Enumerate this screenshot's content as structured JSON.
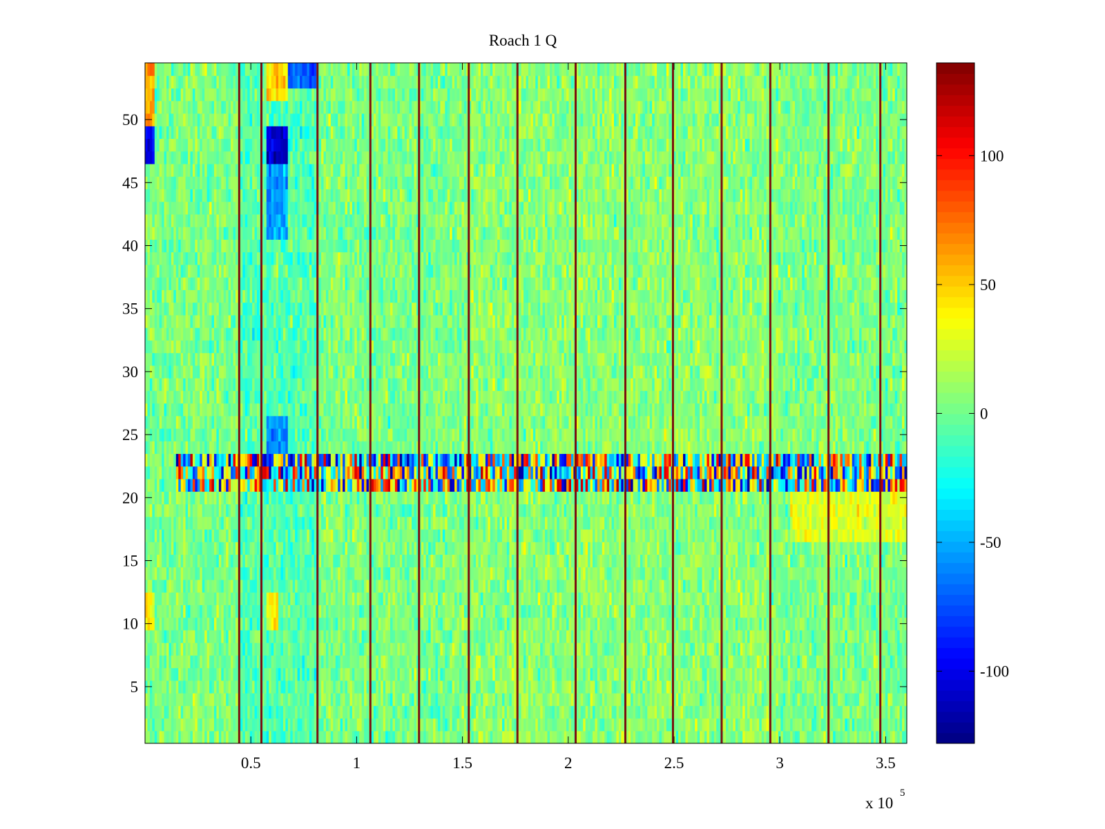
{
  "chart_data": {
    "type": "heatmap",
    "title": "Roach 1 Q",
    "xlabel": "",
    "ylabel": "",
    "x_range": [
      0,
      360000
    ],
    "y_range": [
      0.5,
      54.5
    ],
    "x_ticks": [
      50000,
      100000,
      150000,
      200000,
      250000,
      300000,
      350000
    ],
    "x_tick_labels": [
      "0.5",
      "1",
      "1.5",
      "2",
      "2.5",
      "3",
      "3.5"
    ],
    "x_exponent_label": {
      "base": "x 10",
      "power": "5"
    },
    "y_ticks": [
      5,
      10,
      15,
      20,
      25,
      30,
      35,
      40,
      45,
      50
    ],
    "y_tick_labels": [
      "5",
      "10",
      "15",
      "20",
      "25",
      "30",
      "35",
      "40",
      "45",
      "50"
    ],
    "rows": 54,
    "colormap": "jet",
    "color_limits": [
      -128,
      136
    ],
    "colorbar": {
      "ticks": [
        -100,
        -50,
        0,
        50,
        100
      ],
      "tick_labels": [
        "-100",
        "-50",
        "0",
        "50",
        "100"
      ],
      "placement": "right"
    },
    "dark_vertical_stripes_x": [
      44500,
      55000,
      81500,
      106500,
      129500,
      153000,
      176000,
      203500,
      227000,
      249500,
      272500,
      295500,
      323000,
      347500
    ],
    "anomalies": [
      {
        "rows": [
          21,
          23
        ],
        "x_range": [
          15000,
          360000
        ],
        "description_value": "high variance, values near -120 to 130"
      },
      {
        "rows": [
          47,
          49
        ],
        "x_range": [
          0,
          5000
        ],
        "value": -100
      },
      {
        "rows": [
          47,
          49
        ],
        "x_range": [
          57000,
          67000
        ],
        "value": -105
      },
      {
        "rows": [
          41,
          46
        ],
        "x_range": [
          57000,
          67000
        ],
        "value": -55
      },
      {
        "rows": [
          24,
          26
        ],
        "x_range": [
          57000,
          67000
        ],
        "value": -55
      },
      {
        "rows": [
          52,
          54
        ],
        "x_range": [
          57000,
          67000
        ],
        "value": 45
      },
      {
        "rows": [
          53,
          54
        ],
        "x_range": [
          65000,
          81000
        ],
        "value": -70
      },
      {
        "rows": [
          10,
          12
        ],
        "x_range": [
          57000,
          63000
        ],
        "value": 35
      },
      {
        "rows": [
          50,
          54
        ],
        "x_range": [
          0,
          4000
        ],
        "value": 60
      },
      {
        "rows": [
          10,
          12
        ],
        "x_range": [
          0,
          4000
        ],
        "value": 35
      },
      {
        "rows": [
          17,
          20
        ],
        "x_range": [
          305000,
          360000
        ],
        "value": 28
      }
    ],
    "grid": false
  },
  "colors": {
    "axes": "#000000",
    "background": "#ffffff",
    "stripe": "#7a1010"
  }
}
